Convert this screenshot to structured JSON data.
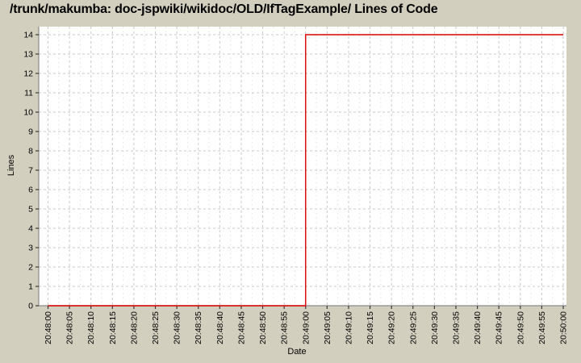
{
  "chart_data": {
    "type": "line",
    "title": "/trunk/makumba: doc-jspwiki/wikidoc/OLD/IfTagExample/ Lines of Code",
    "xlabel": "Date",
    "ylabel": "Lines",
    "ylim": [
      0,
      14
    ],
    "y_ticks": [
      0,
      1,
      2,
      3,
      4,
      5,
      6,
      7,
      8,
      9,
      10,
      11,
      12,
      13,
      14
    ],
    "x_ticks": [
      "20:48:00",
      "20:48:05",
      "20:48:10",
      "20:48:15",
      "20:48:20",
      "20:48:25",
      "20:48:30",
      "20:48:35",
      "20:48:40",
      "20:48:45",
      "20:48:50",
      "20:48:55",
      "20:49:00",
      "20:49:05",
      "20:49:10",
      "20:49:15",
      "20:49:20",
      "20:49:25",
      "20:49:30",
      "20:49:35",
      "20:49:40",
      "20:49:45",
      "20:49:50",
      "20:49:55",
      "20:50:00"
    ],
    "grid": {
      "major_on": true,
      "minor_vertical_on": true,
      "style": "dashed"
    },
    "legend_position": "none",
    "series": [
      {
        "name": "Lines of Code",
        "step": true,
        "points": [
          {
            "x": "20:48:00",
            "y": 0
          },
          {
            "x": "20:49:00",
            "y": 0
          },
          {
            "x": "20:49:00",
            "y": 14
          },
          {
            "x": "20:50:00",
            "y": 14
          }
        ]
      }
    ],
    "colors": {
      "background": "#d2cfbf",
      "plot_background": "#ffffff",
      "grid_major": "#c9c9c9",
      "grid_minor": "#e2e2e2",
      "axis": "#8a8a8a",
      "tick_mark": "#3a3a3a",
      "series_line": "#dc0000",
      "text": "#000000"
    }
  }
}
